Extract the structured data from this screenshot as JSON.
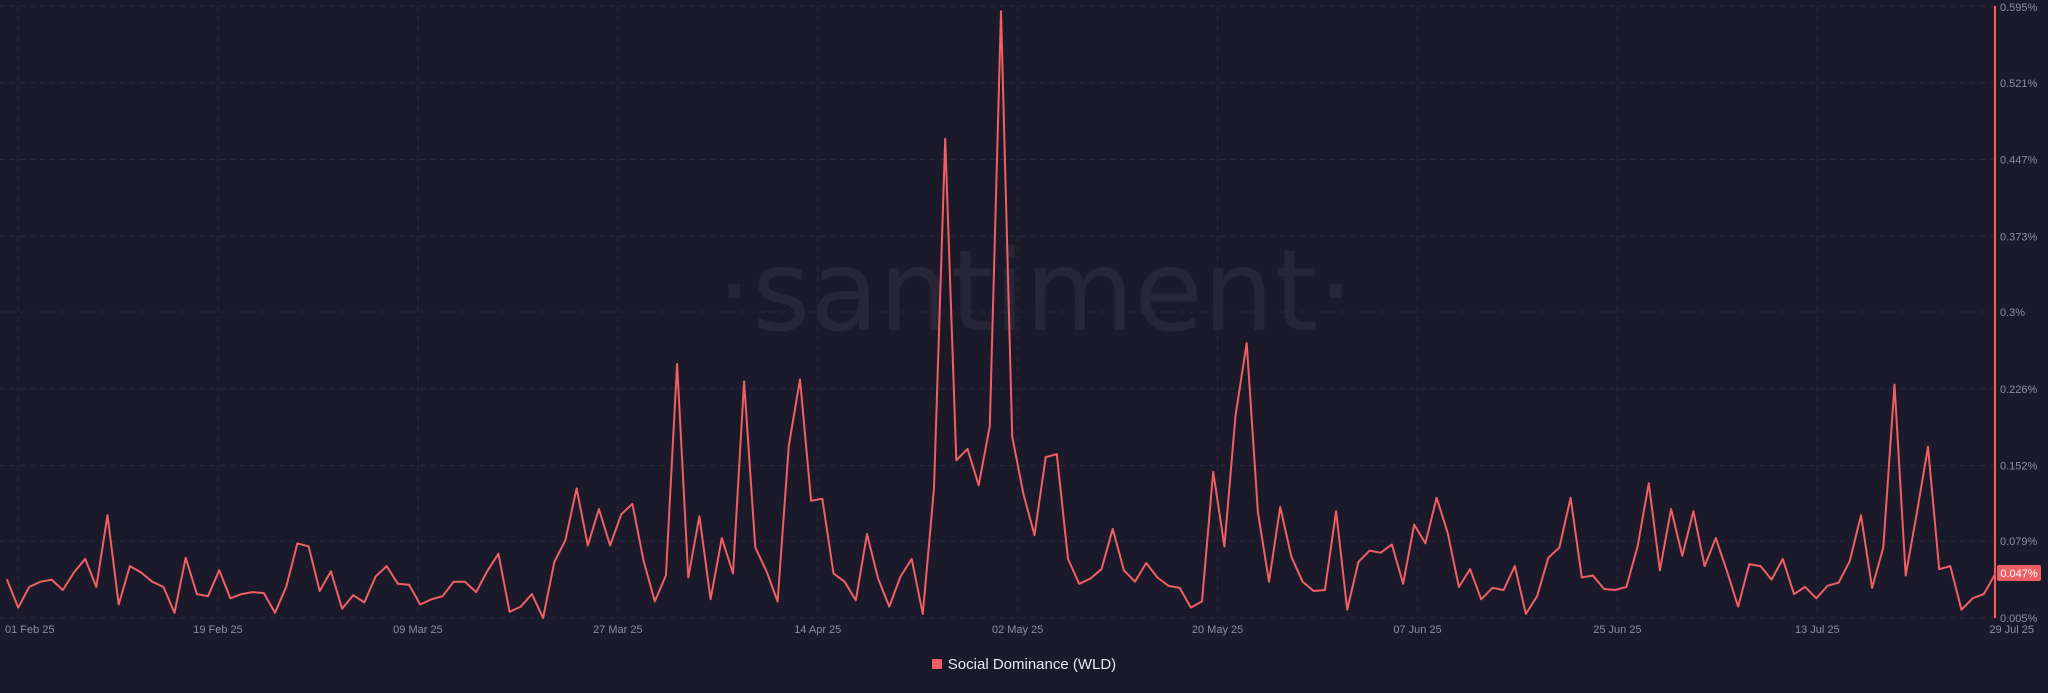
{
  "watermark": "·santiment·",
  "accent_color": "#ef5f63",
  "chart_data": {
    "type": "line",
    "title": "",
    "xlabel": "",
    "ylabel": "",
    "x_start": "2025-01-31",
    "x_end": "2025-07-29",
    "x_tick_labels": [
      "01 Feb 25",
      "19 Feb 25",
      "09 Mar 25",
      "27 Mar 25",
      "14 Apr 25",
      "02 May 25",
      "20 May 25",
      "07 Jun 25",
      "25 Jun 25",
      "13 Jul 25",
      "29 Jul 25"
    ],
    "x_tick_dates": [
      "2025-02-01",
      "2025-02-19",
      "2025-03-09",
      "2025-03-27",
      "2025-04-14",
      "2025-05-02",
      "2025-05-20",
      "2025-06-07",
      "2025-06-25",
      "2025-07-13",
      "2025-07-29"
    ],
    "y_tick_labels": [
      "0.595%",
      "0.521%",
      "0.447%",
      "0.373%",
      "0.3%",
      "0.226%",
      "0.152%",
      "0.079%",
      "0.005%"
    ],
    "y_tick_values": [
      0.595,
      0.521,
      0.447,
      0.373,
      0.3,
      0.226,
      0.152,
      0.079,
      0.005
    ],
    "ylim": [
      0.005,
      0.595
    ],
    "grid": true,
    "legend_position": "bottom-center",
    "current_value_label": "0.047%",
    "series": [
      {
        "name": "Social Dominance (WLD)",
        "color": "#ef5f63",
        "values": [
          0.042,
          0.015,
          0.035,
          0.04,
          0.042,
          0.032,
          0.049,
          0.062,
          0.035,
          0.104,
          0.018,
          0.055,
          0.049,
          0.04,
          0.035,
          0.01,
          0.063,
          0.028,
          0.026,
          0.051,
          0.024,
          0.028,
          0.03,
          0.029,
          0.01,
          0.035,
          0.077,
          0.074,
          0.031,
          0.05,
          0.014,
          0.027,
          0.02,
          0.045,
          0.055,
          0.038,
          0.037,
          0.018,
          0.023,
          0.026,
          0.04,
          0.04,
          0.03,
          0.05,
          0.067,
          0.011,
          0.016,
          0.028,
          0.005,
          0.059,
          0.08,
          0.13,
          0.075,
          0.11,
          0.075,
          0.105,
          0.115,
          0.06,
          0.021,
          0.046,
          0.25,
          0.044,
          0.103,
          0.023,
          0.082,
          0.048,
          0.233,
          0.073,
          0.05,
          0.021,
          0.171,
          0.235,
          0.118,
          0.12,
          0.048,
          0.04,
          0.022,
          0.086,
          0.043,
          0.016,
          0.045,
          0.062,
          0.009,
          0.13,
          0.467,
          0.157,
          0.168,
          0.133,
          0.19,
          0.59,
          0.18,
          0.125,
          0.085,
          0.16,
          0.163,
          0.062,
          0.038,
          0.043,
          0.052,
          0.091,
          0.051,
          0.04,
          0.058,
          0.044,
          0.036,
          0.034,
          0.015,
          0.021,
          0.146,
          0.074,
          0.2,
          0.27,
          0.107,
          0.04,
          0.112,
          0.064,
          0.04,
          0.031,
          0.032,
          0.108,
          0.013,
          0.059,
          0.07,
          0.068,
          0.076,
          0.038,
          0.095,
          0.077,
          0.121,
          0.087,
          0.035,
          0.052,
          0.023,
          0.034,
          0.032,
          0.055,
          0.009,
          0.026,
          0.063,
          0.073,
          0.121,
          0.044,
          0.046,
          0.033,
          0.032,
          0.035,
          0.074,
          0.135,
          0.051,
          0.11,
          0.065,
          0.108,
          0.055,
          0.082,
          0.05,
          0.016,
          0.057,
          0.055,
          0.042,
          0.062,
          0.028,
          0.035,
          0.024,
          0.036,
          0.039,
          0.06,
          0.104,
          0.034,
          0.073,
          0.23,
          0.046,
          0.106,
          0.17,
          0.052,
          0.055,
          0.013,
          0.024,
          0.028,
          0.047
        ]
      }
    ]
  }
}
